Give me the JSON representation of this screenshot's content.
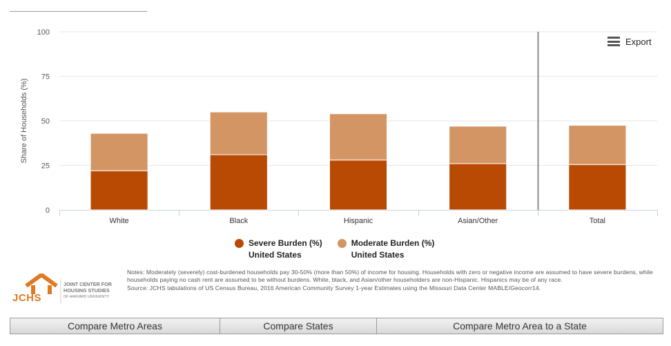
{
  "chart_data": {
    "type": "bar",
    "stacked": true,
    "categories": [
      "White",
      "Black",
      "Hispanic",
      "Asian/Other",
      "Total"
    ],
    "series": [
      {
        "name": "Severe Burden (%)",
        "subname": "United States",
        "color": "#b94a04",
        "values": [
          22,
          31,
          28,
          26,
          25.5
        ]
      },
      {
        "name": "Moderate Burden (%)",
        "subname": "United States",
        "color": "#d49564",
        "values": [
          21,
          24,
          26,
          21,
          22
        ]
      }
    ],
    "ylabel": "Share of Households (%)",
    "yticks": [
      "0",
      "25",
      "50",
      "75",
      "100"
    ],
    "ylim": [
      0,
      100
    ],
    "grid": true,
    "legend_position": "bottom",
    "separator_before": "Total"
  },
  "toolbar": {
    "export_label": "Export"
  },
  "logo": {
    "letters": "JCHS",
    "lines": [
      "JOINT CENTER FOR",
      "HOUSING STUDIES",
      "OF HARVARD UNIVERSITY"
    ],
    "color": "#e07a22"
  },
  "notes": {
    "text": "Notes: Moderately (severely) cost-burdened households pay 30-50% (more than 50%) of income for housing. Households with zero or negative income are assumed to have severe burdens, while households paying no cash rent are assumed to be without burdens. White, black, and Asian/other householders are non-Hispanic. Hispanics may be of any race.",
    "source": "Source: JCHS tabulations of US Census Bureau, 2016 American Community Survey 1-year Estimates using the Missouri Data Center MABLE/Geocorr14."
  },
  "buttons": [
    {
      "label": "Compare Metro Areas"
    },
    {
      "label": "Compare States"
    },
    {
      "label": "Compare Metro Area to a State"
    }
  ]
}
